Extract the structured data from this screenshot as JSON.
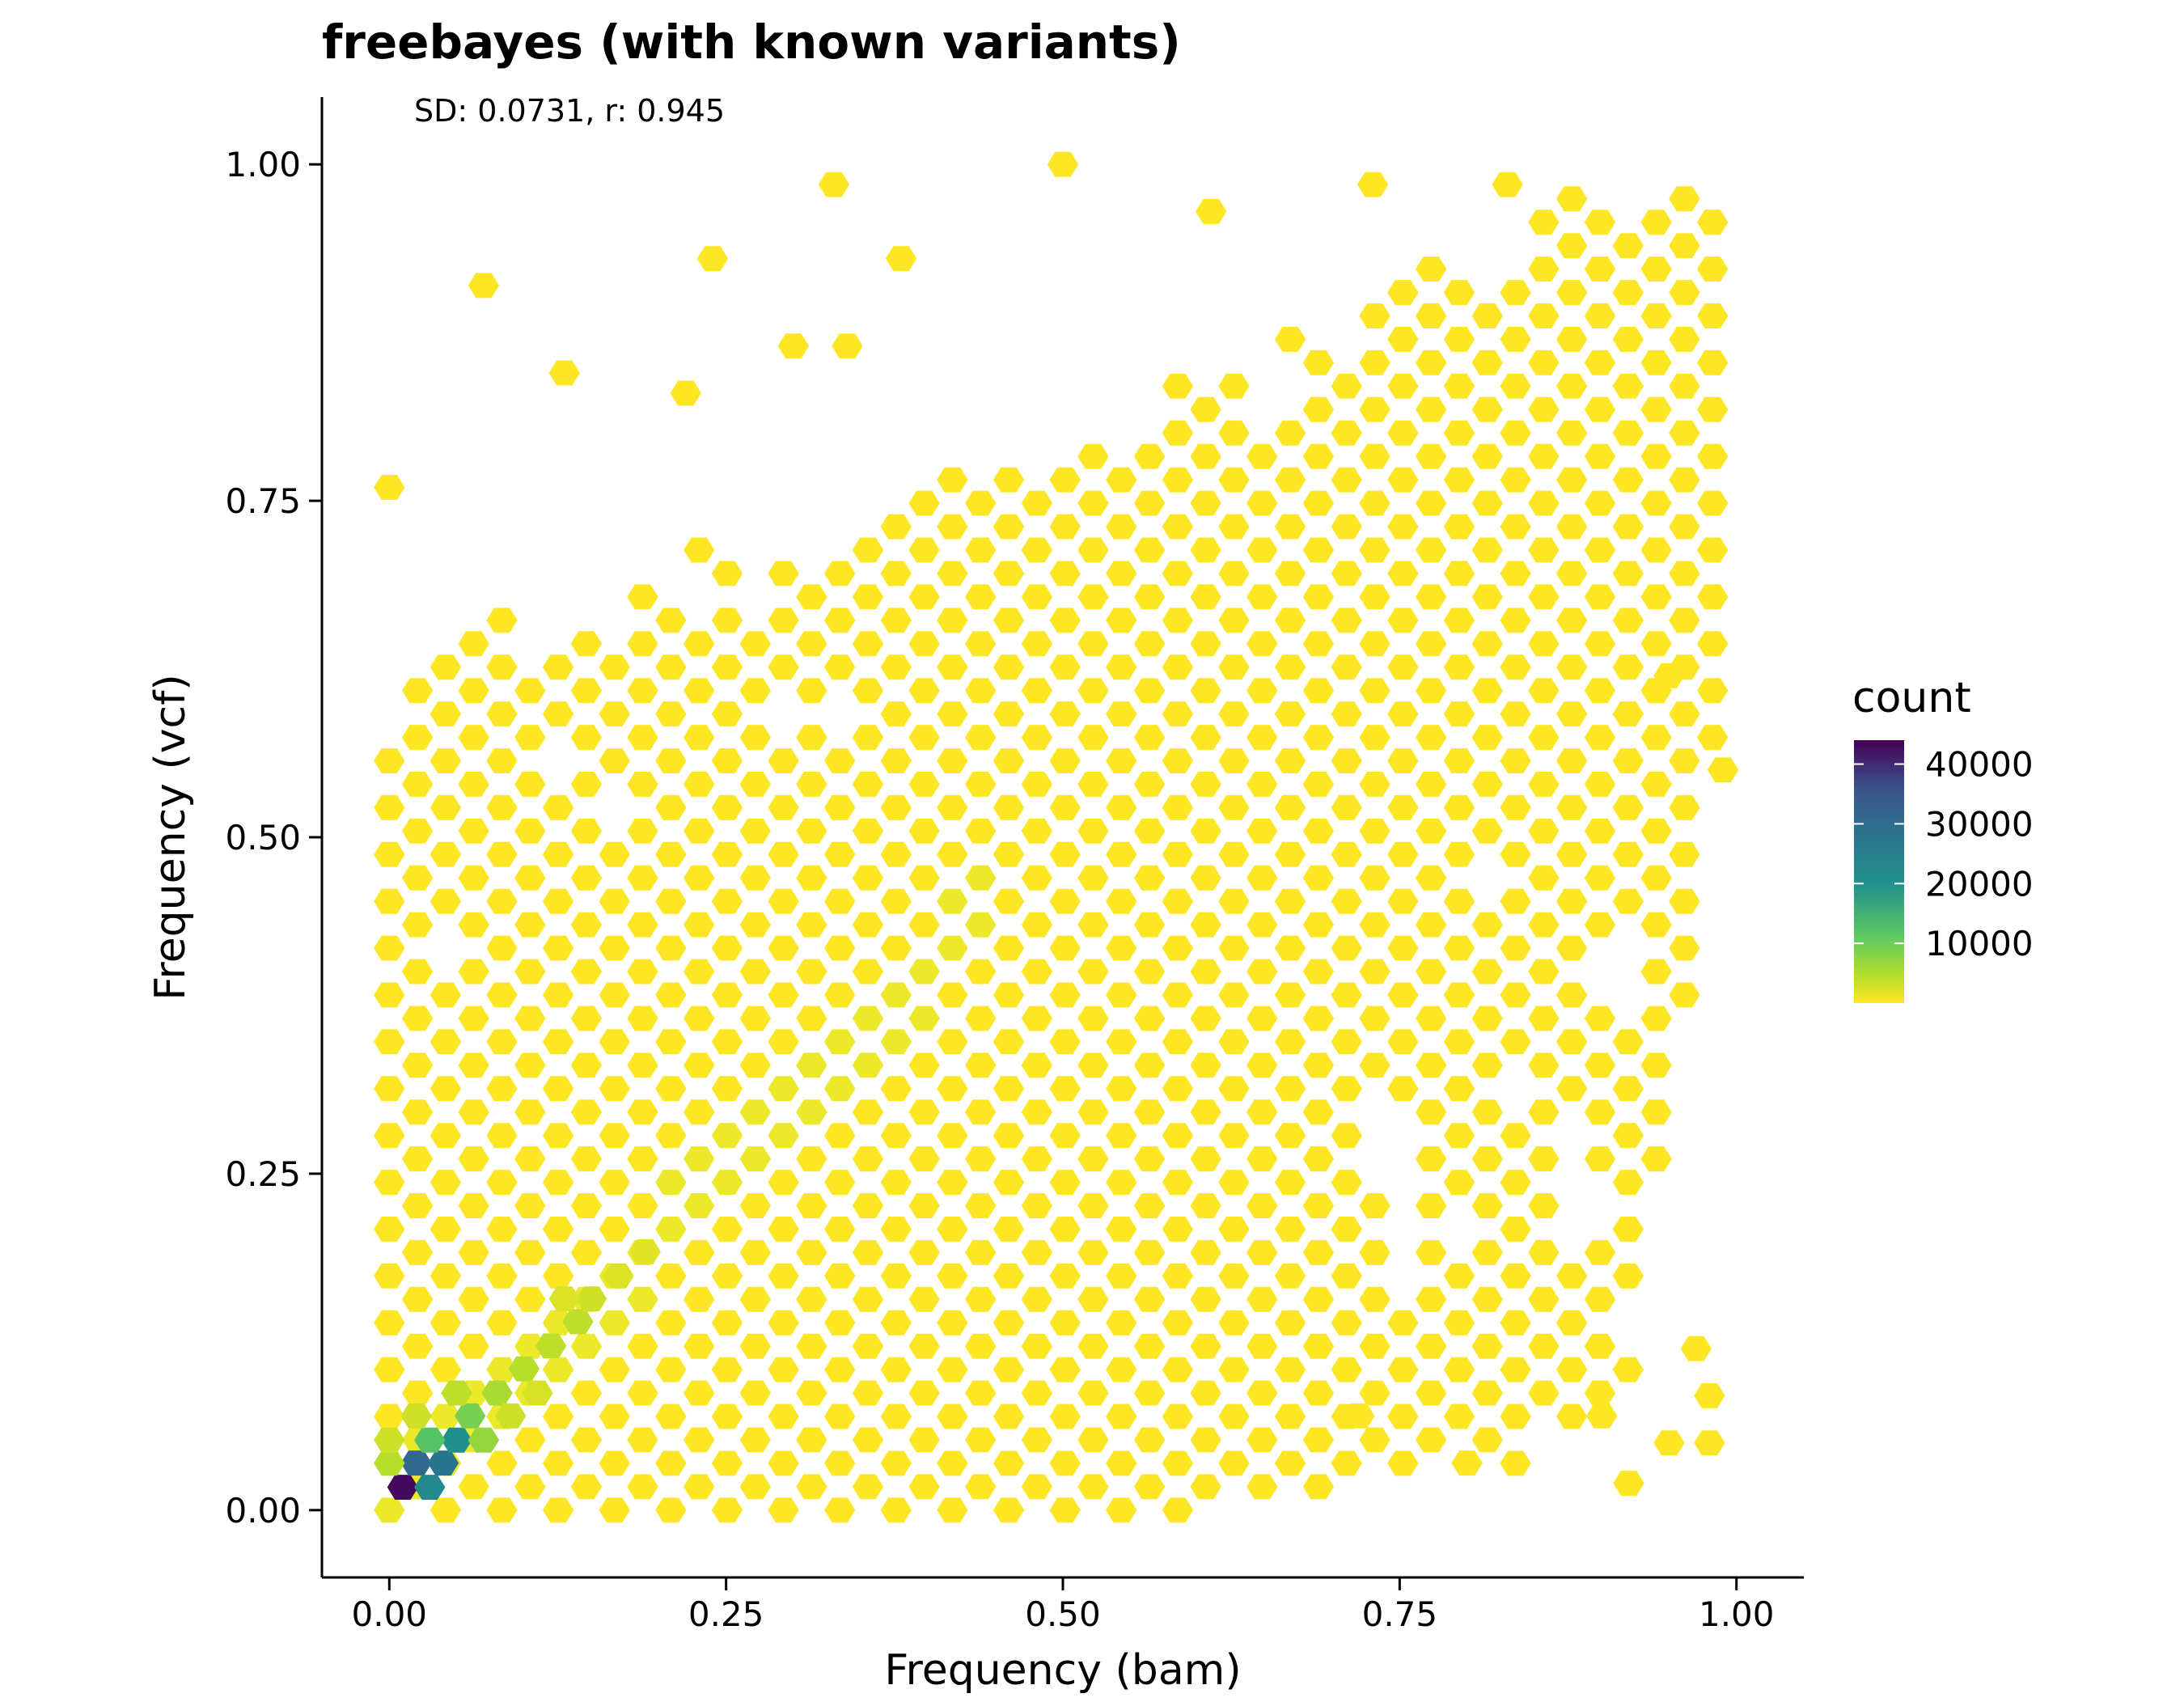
{
  "chart_data": {
    "type": "hexbin",
    "title": "freebayes (with known variants)",
    "annotation": "SD: 0.0731, r: 0.945",
    "xlabel": "Frequency (bam)",
    "ylabel": "Frequency (vcf)",
    "xlim": [
      -0.05,
      1.05
    ],
    "ylim": [
      -0.05,
      1.05
    ],
    "x_ticks": [
      0,
      0.25,
      0.5,
      0.75,
      1
    ],
    "x_tick_labels": [
      "0.00",
      "0.25",
      "0.50",
      "0.75",
      "1.00"
    ],
    "y_ticks": [
      0,
      0.25,
      0.5,
      0.75,
      1
    ],
    "y_tick_labels": [
      "0.00",
      "0.25",
      "0.50",
      "0.75",
      "1.00"
    ],
    "grid": false,
    "legend": {
      "title": "count",
      "position": "right",
      "range": [
        1,
        44000
      ],
      "ticks": [
        40000,
        30000,
        20000,
        10000
      ],
      "tick_labels": [
        "40000",
        "30000",
        "20000",
        "10000"
      ],
      "colormap": "viridis (reversed: low = yellow, high = purple)"
    },
    "colors": {
      "low": "#fde725",
      "mid_low": "#b8de29",
      "mid": "#20a486",
      "mid_high": "#2d708e",
      "high": "#440154"
    },
    "high_density_bins": [
      {
        "x": 0.01,
        "y": 0.017,
        "count": 43000
      },
      {
        "x": 0.02,
        "y": 0.035,
        "count": 31000
      },
      {
        "x": 0.03,
        "y": 0.017,
        "count": 22000
      },
      {
        "x": 0.04,
        "y": 0.035,
        "count": 28000
      },
      {
        "x": 0.05,
        "y": 0.052,
        "count": 20000
      },
      {
        "x": 0.03,
        "y": 0.052,
        "count": 12000
      },
      {
        "x": 0.06,
        "y": 0.07,
        "count": 9000
      },
      {
        "x": 0.07,
        "y": 0.052,
        "count": 7000
      },
      {
        "x": 0.08,
        "y": 0.087,
        "count": 5500
      },
      {
        "x": 0.05,
        "y": 0.087,
        "count": 4000
      },
      {
        "x": 0.1,
        "y": 0.105,
        "count": 4500
      },
      {
        "x": 0.0,
        "y": 0.035,
        "count": 4500
      },
      {
        "x": 0.0,
        "y": 0.052,
        "count": 3000
      },
      {
        "x": 0.02,
        "y": 0.07,
        "count": 3000
      },
      {
        "x": 0.12,
        "y": 0.122,
        "count": 4000
      },
      {
        "x": 0.14,
        "y": 0.14,
        "count": 4000
      },
      {
        "x": 0.09,
        "y": 0.07,
        "count": 3000
      },
      {
        "x": 0.11,
        "y": 0.087,
        "count": 2500
      },
      {
        "x": 0.15,
        "y": 0.157,
        "count": 3000
      },
      {
        "x": 0.13,
        "y": 0.157,
        "count": 2200
      },
      {
        "x": 0.17,
        "y": 0.174,
        "count": 2200
      },
      {
        "x": 0.19,
        "y": 0.192,
        "count": 1800
      }
    ],
    "outlier_bins": [
      {
        "x": 0.07,
        "y": 0.91
      },
      {
        "x": 0.13,
        "y": 0.845
      },
      {
        "x": 0.33,
        "y": 0.985
      },
      {
        "x": 0.5,
        "y": 1.0
      },
      {
        "x": 0.24,
        "y": 0.93
      },
      {
        "x": 0.38,
        "y": 0.93
      },
      {
        "x": 0.0,
        "y": 0.76
      },
      {
        "x": 0.22,
        "y": 0.83
      },
      {
        "x": 0.3,
        "y": 0.865
      },
      {
        "x": 0.34,
        "y": 0.865
      },
      {
        "x": 0.61,
        "y": 0.965
      },
      {
        "x": 0.73,
        "y": 0.985
      },
      {
        "x": 0.83,
        "y": 0.985
      },
      {
        "x": 0.92,
        "y": 0.02
      },
      {
        "x": 0.95,
        "y": 0.05
      },
      {
        "x": 0.98,
        "y": 0.05
      },
      {
        "x": 0.98,
        "y": 0.085
      },
      {
        "x": 0.9,
        "y": 0.07
      },
      {
        "x": 0.97,
        "y": 0.12
      },
      {
        "x": 0.99,
        "y": 0.55
      },
      {
        "x": 0.95,
        "y": 0.62
      },
      {
        "x": 0.72,
        "y": 0.07
      },
      {
        "x": 0.8,
        "y": 0.035
      }
    ],
    "empty_holes": [
      {
        "x": 0.05,
        "y": 0.43
      },
      {
        "x": 0.12,
        "y": 0.55
      },
      {
        "x": 0.17,
        "y": 0.535
      },
      {
        "x": 0.29,
        "y": 0.6
      },
      {
        "x": 0.33,
        "y": 0.6
      },
      {
        "x": 0.28,
        "y": 0.69
      },
      {
        "x": 0.54,
        "y": 0.795
      },
      {
        "x": 0.61,
        "y": 0.845
      },
      {
        "x": 0.66,
        "y": 0.83
      },
      {
        "x": 0.73,
        "y": 0.91
      },
      {
        "x": 0.82,
        "y": 0.48
      },
      {
        "x": 0.91,
        "y": 0.4
      },
      {
        "x": 0.84,
        "y": 0.31
      },
      {
        "x": 0.76,
        "y": 0.26
      },
      {
        "x": 0.74,
        "y": 0.275
      },
      {
        "x": 0.8,
        "y": 0.205
      },
      {
        "x": 0.75,
        "y": 0.19
      },
      {
        "x": 0.87,
        "y": 0.26
      },
      {
        "x": 0.89,
        "y": 0.225
      }
    ]
  }
}
